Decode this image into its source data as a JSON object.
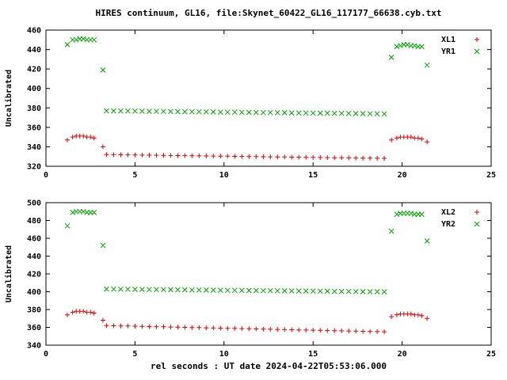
{
  "title": "HIRES continuum, GL16, file:Skynet_60422_GL16_117177_66638.cyb.txt",
  "xlabel": "rel seconds : UT date 2024-04-22T05:53:06.000",
  "colors": {
    "red": "#e00000",
    "green": "#00a000",
    "axis": "#000000",
    "background": "#ffffff"
  },
  "chart_data": [
    {
      "type": "scatter",
      "panel": "top",
      "ylabel": "Uncalibrated",
      "xlim": [
        0,
        25
      ],
      "xticks": [
        0,
        5,
        10,
        15,
        20,
        25
      ],
      "ylim": [
        320,
        460
      ],
      "yticks": [
        320,
        340,
        360,
        380,
        400,
        420,
        440,
        460
      ],
      "legend_position": "top-right",
      "series": [
        {
          "name": "XL1",
          "marker": "plus",
          "color": "#e00000",
          "points": [
            [
              1.2,
              347
            ],
            [
              1.5,
              350
            ],
            [
              1.7,
              351
            ],
            [
              1.9,
              351
            ],
            [
              2.1,
              351
            ],
            [
              2.3,
              350
            ],
            [
              2.5,
              350
            ],
            [
              2.7,
              349
            ],
            [
              3.2,
              340
            ],
            [
              3.4,
              332.0
            ],
            [
              3.8,
              331.9
            ],
            [
              4.2,
              331.8
            ],
            [
              4.6,
              331.7
            ],
            [
              5.0,
              331.6
            ],
            [
              5.4,
              331.5
            ],
            [
              5.8,
              331.4
            ],
            [
              6.2,
              331.3
            ],
            [
              6.6,
              331.2
            ],
            [
              7.0,
              331.1
            ],
            [
              7.4,
              331.0
            ],
            [
              7.8,
              330.9
            ],
            [
              8.2,
              330.8
            ],
            [
              8.6,
              330.7
            ],
            [
              9.0,
              330.6
            ],
            [
              9.4,
              330.5
            ],
            [
              9.8,
              330.4
            ],
            [
              10.2,
              330.3
            ],
            [
              10.6,
              330.2
            ],
            [
              11.0,
              330.1
            ],
            [
              11.4,
              330.0
            ],
            [
              11.8,
              329.9
            ],
            [
              12.2,
              329.8
            ],
            [
              12.6,
              329.7
            ],
            [
              13.0,
              329.6
            ],
            [
              13.4,
              329.5
            ],
            [
              13.8,
              329.4
            ],
            [
              14.2,
              329.3
            ],
            [
              14.6,
              329.2
            ],
            [
              15.0,
              329.1
            ],
            [
              15.4,
              329.0
            ],
            [
              15.8,
              328.9
            ],
            [
              16.2,
              328.8
            ],
            [
              16.6,
              328.7
            ],
            [
              17.0,
              328.6
            ],
            [
              17.4,
              328.5
            ],
            [
              17.8,
              328.4
            ],
            [
              18.2,
              328.3
            ],
            [
              18.6,
              328.2
            ],
            [
              19.0,
              328.1
            ],
            [
              19.4,
              347
            ],
            [
              19.7,
              349
            ],
            [
              19.9,
              350
            ],
            [
              20.1,
              350
            ],
            [
              20.3,
              350
            ],
            [
              20.5,
              350
            ],
            [
              20.7,
              349
            ],
            [
              20.9,
              349
            ],
            [
              21.1,
              348
            ],
            [
              21.4,
              345
            ]
          ]
        },
        {
          "name": "YR1",
          "marker": "cross",
          "color": "#00a000",
          "points": [
            [
              1.2,
              445
            ],
            [
              1.5,
              450
            ],
            [
              1.7,
              450
            ],
            [
              1.9,
              451
            ],
            [
              2.1,
              451
            ],
            [
              2.3,
              450
            ],
            [
              2.5,
              450
            ],
            [
              2.7,
              450
            ],
            [
              3.2,
              419
            ],
            [
              3.4,
              377.0
            ],
            [
              3.8,
              376.9
            ],
            [
              4.2,
              376.8
            ],
            [
              4.6,
              376.8
            ],
            [
              5.0,
              376.7
            ],
            [
              5.4,
              376.6
            ],
            [
              5.8,
              376.5
            ],
            [
              6.2,
              376.4
            ],
            [
              6.6,
              376.4
            ],
            [
              7.0,
              376.3
            ],
            [
              7.4,
              376.2
            ],
            [
              7.8,
              376.1
            ],
            [
              8.2,
              376.0
            ],
            [
              8.6,
              376.0
            ],
            [
              9.0,
              375.9
            ],
            [
              9.4,
              375.8
            ],
            [
              9.8,
              375.7
            ],
            [
              10.2,
              375.6
            ],
            [
              10.6,
              375.6
            ],
            [
              11.0,
              375.5
            ],
            [
              11.4,
              375.4
            ],
            [
              11.8,
              375.3
            ],
            [
              12.2,
              375.2
            ],
            [
              12.6,
              375.2
            ],
            [
              13.0,
              375.1
            ],
            [
              13.4,
              375.0
            ],
            [
              13.8,
              374.9
            ],
            [
              14.2,
              374.8
            ],
            [
              14.6,
              374.8
            ],
            [
              15.0,
              374.7
            ],
            [
              15.4,
              374.6
            ],
            [
              15.8,
              374.5
            ],
            [
              16.2,
              374.4
            ],
            [
              16.6,
              374.4
            ],
            [
              17.0,
              374.3
            ],
            [
              17.4,
              374.2
            ],
            [
              17.8,
              374.1
            ],
            [
              18.2,
              374.0
            ],
            [
              18.6,
              374.0
            ],
            [
              19.0,
              373.9
            ],
            [
              19.4,
              432
            ],
            [
              19.7,
              443
            ],
            [
              19.9,
              444
            ],
            [
              20.1,
              445
            ],
            [
              20.3,
              445
            ],
            [
              20.5,
              444
            ],
            [
              20.7,
              444
            ],
            [
              20.9,
              443
            ],
            [
              21.1,
              443
            ],
            [
              21.4,
              424
            ]
          ]
        }
      ]
    },
    {
      "type": "scatter",
      "panel": "bottom",
      "ylabel": "Uncalibrated",
      "xlim": [
        0,
        25
      ],
      "xticks": [
        0,
        5,
        10,
        15,
        20,
        25
      ],
      "ylim": [
        340,
        500
      ],
      "yticks": [
        340,
        360,
        380,
        400,
        420,
        440,
        460,
        480,
        500
      ],
      "legend_position": "top-right",
      "series": [
        {
          "name": "XL2",
          "marker": "plus",
          "color": "#e00000",
          "points": [
            [
              1.2,
              374
            ],
            [
              1.5,
              377
            ],
            [
              1.7,
              378
            ],
            [
              1.9,
              378
            ],
            [
              2.1,
              378
            ],
            [
              2.3,
              377
            ],
            [
              2.5,
              377
            ],
            [
              2.7,
              376
            ],
            [
              3.2,
              368
            ],
            [
              3.4,
              362.0
            ],
            [
              3.8,
              361.8
            ],
            [
              4.2,
              361.6
            ],
            [
              4.6,
              361.5
            ],
            [
              5.0,
              361.3
            ],
            [
              5.4,
              361.1
            ],
            [
              5.8,
              360.9
            ],
            [
              6.2,
              360.7
            ],
            [
              6.6,
              360.6
            ],
            [
              7.0,
              360.4
            ],
            [
              7.4,
              360.2
            ],
            [
              7.8,
              360.0
            ],
            [
              8.2,
              359.8
            ],
            [
              8.6,
              359.7
            ],
            [
              9.0,
              359.5
            ],
            [
              9.4,
              359.3
            ],
            [
              9.8,
              359.1
            ],
            [
              10.2,
              358.9
            ],
            [
              10.6,
              358.8
            ],
            [
              11.0,
              358.6
            ],
            [
              11.4,
              358.4
            ],
            [
              11.8,
              358.2
            ],
            [
              12.2,
              358.0
            ],
            [
              12.6,
              357.9
            ],
            [
              13.0,
              357.7
            ],
            [
              13.4,
              357.5
            ],
            [
              13.8,
              357.3
            ],
            [
              14.2,
              357.1
            ],
            [
              14.6,
              357.0
            ],
            [
              15.0,
              356.8
            ],
            [
              15.4,
              356.6
            ],
            [
              15.8,
              356.4
            ],
            [
              16.2,
              356.2
            ],
            [
              16.6,
              356.1
            ],
            [
              17.0,
              355.9
            ],
            [
              17.4,
              355.7
            ],
            [
              17.8,
              355.5
            ],
            [
              18.2,
              355.3
            ],
            [
              18.6,
              355.2
            ],
            [
              19.0,
              355.0
            ],
            [
              19.4,
              372
            ],
            [
              19.7,
              374
            ],
            [
              19.9,
              375
            ],
            [
              20.1,
              375
            ],
            [
              20.3,
              375
            ],
            [
              20.5,
              375
            ],
            [
              20.7,
              374
            ],
            [
              20.9,
              374
            ],
            [
              21.1,
              373
            ],
            [
              21.4,
              370
            ]
          ]
        },
        {
          "name": "YR2",
          "marker": "cross",
          "color": "#00a000",
          "points": [
            [
              1.2,
              474
            ],
            [
              1.5,
              489
            ],
            [
              1.7,
              490
            ],
            [
              1.9,
              490
            ],
            [
              2.1,
              490
            ],
            [
              2.3,
              489
            ],
            [
              2.5,
              489
            ],
            [
              2.7,
              489
            ],
            [
              3.2,
              452
            ],
            [
              3.4,
              403.0
            ],
            [
              3.8,
              402.9
            ],
            [
              4.2,
              402.8
            ],
            [
              4.6,
              402.8
            ],
            [
              5.0,
              402.7
            ],
            [
              5.4,
              402.6
            ],
            [
              5.8,
              402.5
            ],
            [
              6.2,
              402.4
            ],
            [
              6.6,
              402.4
            ],
            [
              7.0,
              402.3
            ],
            [
              7.4,
              402.2
            ],
            [
              7.8,
              402.1
            ],
            [
              8.2,
              402.0
            ],
            [
              8.6,
              402.0
            ],
            [
              9.0,
              401.9
            ],
            [
              9.4,
              401.8
            ],
            [
              9.8,
              401.7
            ],
            [
              10.2,
              401.6
            ],
            [
              10.6,
              401.6
            ],
            [
              11.0,
              401.5
            ],
            [
              11.4,
              401.4
            ],
            [
              11.8,
              401.3
            ],
            [
              12.2,
              401.2
            ],
            [
              12.6,
              401.2
            ],
            [
              13.0,
              401.1
            ],
            [
              13.4,
              401.0
            ],
            [
              13.8,
              400.9
            ],
            [
              14.2,
              400.8
            ],
            [
              14.6,
              400.8
            ],
            [
              15.0,
              400.7
            ],
            [
              15.4,
              400.6
            ],
            [
              15.8,
              400.5
            ],
            [
              16.2,
              400.4
            ],
            [
              16.6,
              400.4
            ],
            [
              17.0,
              400.3
            ],
            [
              17.4,
              400.2
            ],
            [
              17.8,
              400.1
            ],
            [
              18.2,
              400.0
            ],
            [
              18.6,
              400.0
            ],
            [
              19.0,
              399.9
            ],
            [
              19.4,
              468
            ],
            [
              19.7,
              487
            ],
            [
              19.9,
              488
            ],
            [
              20.1,
              488
            ],
            [
              20.3,
              488
            ],
            [
              20.5,
              488
            ],
            [
              20.7,
              487
            ],
            [
              20.9,
              487
            ],
            [
              21.1,
              487
            ],
            [
              21.4,
              457
            ]
          ]
        }
      ]
    }
  ]
}
